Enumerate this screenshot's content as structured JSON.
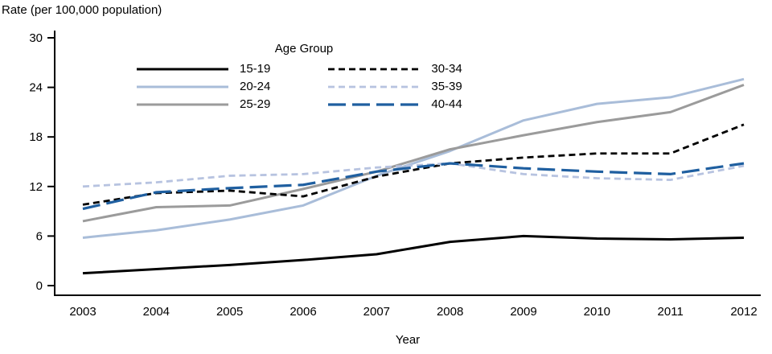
{
  "title": "Rate (per 100,000 population)",
  "xlabel": "Year",
  "legend": {
    "title": "Age Group"
  },
  "chart_data": {
    "type": "line",
    "x": [
      2003,
      2004,
      2005,
      2006,
      2007,
      2008,
      2009,
      2010,
      2011,
      2012
    ],
    "yticks": [
      0,
      6,
      12,
      18,
      24,
      30
    ],
    "ylim": [
      0,
      30
    ],
    "xlabel": "Year",
    "ylabel": "Rate (per 100,000 population)",
    "legend_title": "Age Group",
    "series": [
      {
        "name": "15-19",
        "color": "#000000",
        "line_style": "solid",
        "values": [
          1.5,
          2.0,
          2.5,
          3.1,
          3.8,
          5.3,
          6.0,
          5.7,
          5.6,
          5.8
        ]
      },
      {
        "name": "20-24",
        "color": "#a9bdd9",
        "line_style": "solid",
        "values": [
          5.8,
          6.7,
          8.0,
          9.7,
          13.3,
          16.3,
          20.0,
          22.0,
          22.8,
          25.0
        ]
      },
      {
        "name": "25-29",
        "color": "#9b9b9b",
        "line_style": "solid",
        "values": [
          7.8,
          9.5,
          9.7,
          11.7,
          13.8,
          16.5,
          18.2,
          19.8,
          21.0,
          24.3
        ]
      },
      {
        "name": "30-34",
        "color": "#000000",
        "line_style": "dash",
        "values": [
          9.8,
          11.2,
          11.5,
          10.8,
          13.2,
          14.8,
          15.5,
          16.0,
          16.0,
          19.5
        ]
      },
      {
        "name": "35-39",
        "color": "#b7c3e0",
        "line_style": "dash",
        "values": [
          12.0,
          12.5,
          13.3,
          13.5,
          14.3,
          14.8,
          13.5,
          13.0,
          12.8,
          14.5
        ]
      },
      {
        "name": "40-44",
        "color": "#1f5fa0",
        "line_style": "long-dash",
        "values": [
          9.3,
          11.3,
          11.8,
          12.2,
          13.8,
          14.8,
          14.2,
          13.8,
          13.5,
          14.8
        ]
      }
    ]
  }
}
